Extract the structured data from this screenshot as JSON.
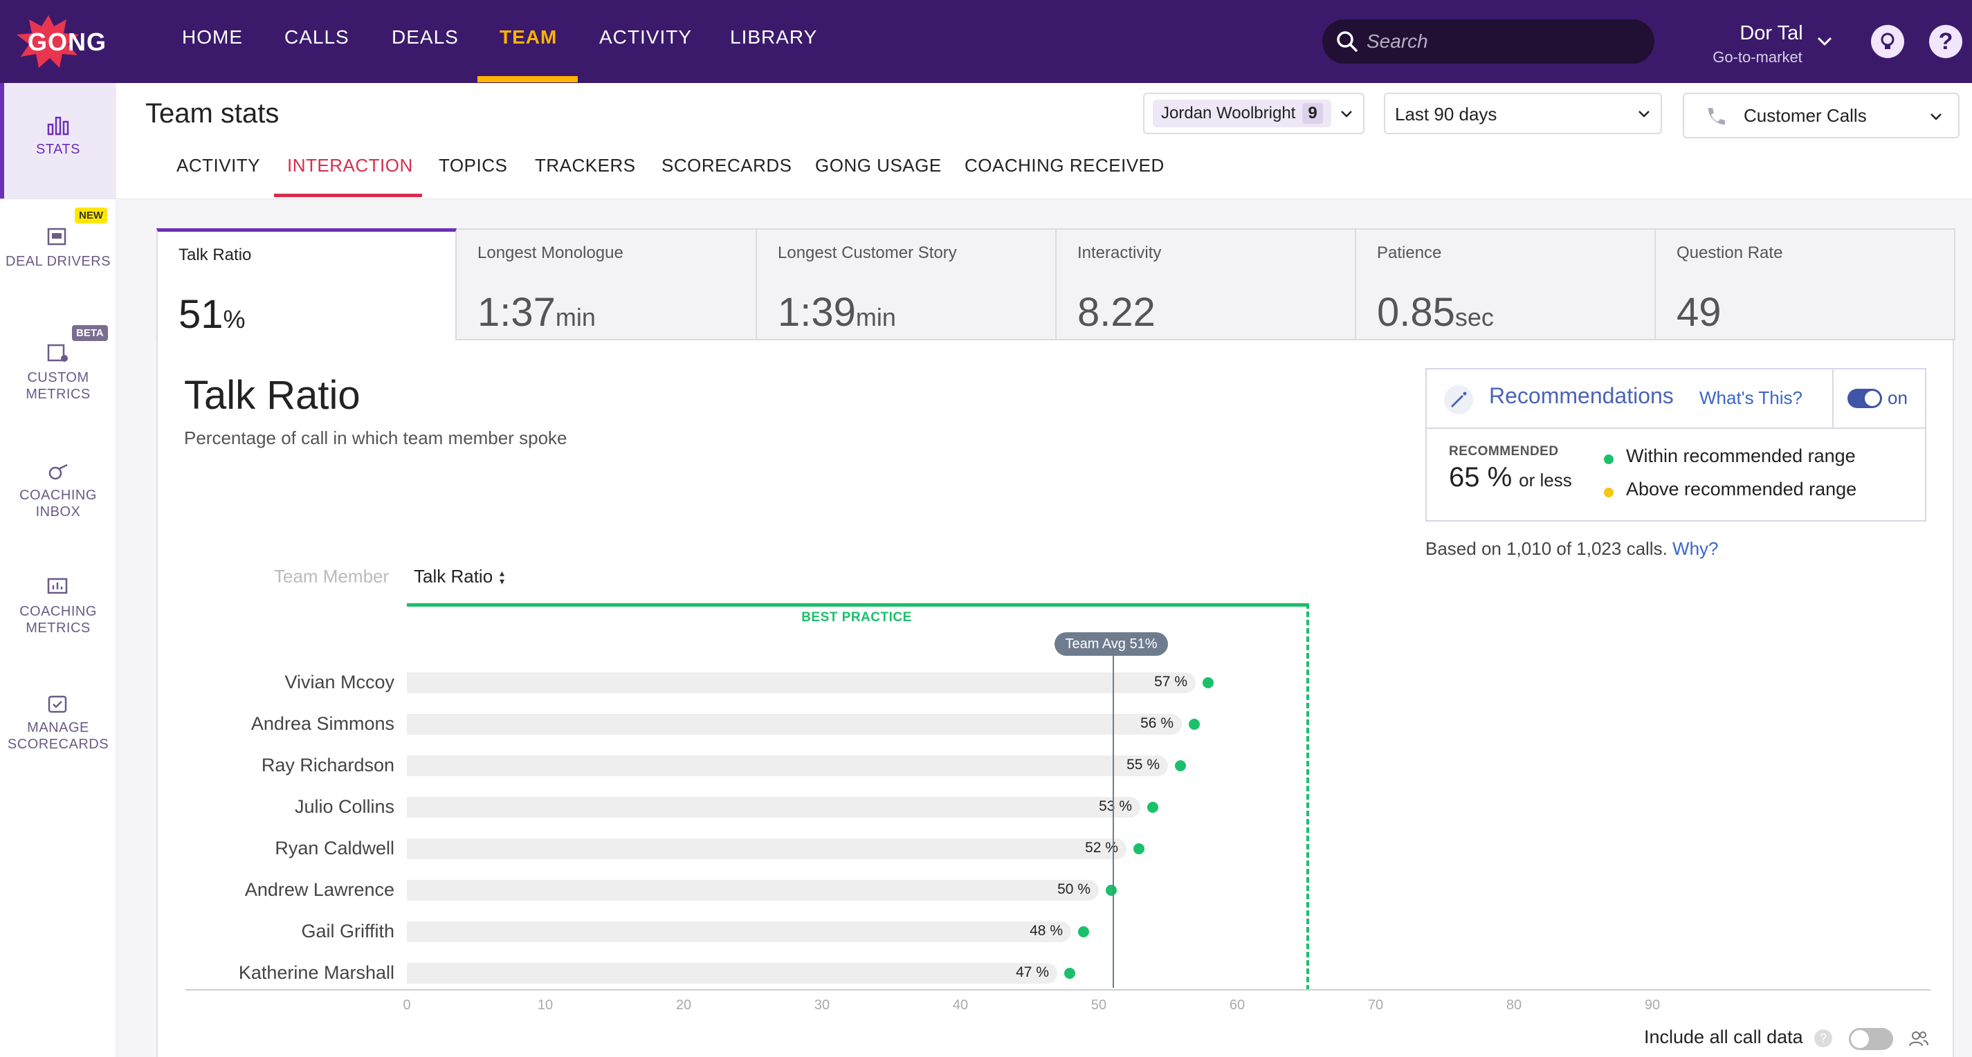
{
  "app": {
    "logo_text": "GONG",
    "brand_color": "#3b1a6c",
    "accent_color": "#ffb400"
  },
  "nav": {
    "items": [
      "HOME",
      "CALLS",
      "DEALS",
      "TEAM",
      "ACTIVITY",
      "LIBRARY"
    ],
    "active": "TEAM"
  },
  "search": {
    "placeholder": "Search"
  },
  "user": {
    "name": "Dor Tal",
    "role": "Go-to-market"
  },
  "sidebar": {
    "items": [
      {
        "label": "STATS",
        "icon": "bar-chart-icon",
        "active": true
      },
      {
        "label": "DEAL DRIVERS",
        "icon": "deal-drivers-icon",
        "badge": "NEW"
      },
      {
        "label": "CUSTOM METRICS",
        "icon": "custom-metrics-icon",
        "badge": "BETA"
      },
      {
        "label": "COACHING INBOX",
        "icon": "whistle-icon"
      },
      {
        "label": "COACHING METRICS",
        "icon": "coaching-metrics-icon"
      },
      {
        "label": "MANAGE SCORECARDS",
        "icon": "scorecard-icon"
      }
    ]
  },
  "header": {
    "title": "Team stats",
    "member_filter": {
      "name": "Jordan Woolbright",
      "count": "9"
    },
    "date_filter": "Last 90 days",
    "call_type_filter": "Customer Calls"
  },
  "subtabs": [
    "ACTIVITY",
    "INTERACTION",
    "TOPICS",
    "TRACKERS",
    "SCORECARDS",
    "GONG USAGE",
    "COACHING RECEIVED"
  ],
  "active_subtab": "INTERACTION",
  "metrics": [
    {
      "label": "Talk Ratio",
      "value": "51",
      "unit": "%",
      "active": true
    },
    {
      "label": "Longest Monologue",
      "value": "1:37",
      "unit": "min"
    },
    {
      "label": "Longest Customer Story",
      "value": "1:39",
      "unit": "min"
    },
    {
      "label": "Interactivity",
      "value": "8.22",
      "unit": ""
    },
    {
      "label": "Patience",
      "value": "0.85",
      "unit": "sec"
    },
    {
      "label": "Question Rate",
      "value": "49",
      "unit": ""
    }
  ],
  "chart": {
    "title": "Talk Ratio",
    "description": "Percentage of call in which team member spoke",
    "col_member": "Team Member",
    "col_metric": "Talk Ratio",
    "best_practice_label": "BEST PRACTICE",
    "team_avg_label": "Team Avg 51%"
  },
  "recommendations": {
    "title": "Recommendations",
    "link": "What's This?",
    "toggle": "on",
    "recommended_label": "RECOMMENDED",
    "recommended_value": "65 %",
    "recommended_suffix": "or less",
    "legend": [
      {
        "text": "Within recommended range",
        "color": "#1bc06b"
      },
      {
        "text": "Above recommended range",
        "color": "#f5c518"
      }
    ],
    "note": "Based on 1,010 of 1,023 calls.",
    "why": "Why?"
  },
  "footer": {
    "include_label": "Include all call data"
  },
  "chart_data": {
    "type": "bar",
    "orientation": "horizontal",
    "categories": [
      "Vivian Mccoy",
      "Andrea Simmons",
      "Ray Richardson",
      "Julio Collins",
      "Ryan Caldwell",
      "Andrew Lawrence",
      "Gail Griffith",
      "Katherine Marshall"
    ],
    "values": [
      57,
      56,
      55,
      53,
      52,
      50,
      48,
      47
    ],
    "value_labels": [
      "57 %",
      "56 %",
      "55 %",
      "53 %",
      "52 %",
      "50 %",
      "48 %",
      "47 %"
    ],
    "xlim": [
      0,
      100
    ],
    "ticks": [
      "0",
      "10",
      "20",
      "30",
      "40",
      "50",
      "60",
      "70",
      "80",
      "90"
    ],
    "team_avg": 51,
    "best_practice_max": 65,
    "point_color": "#1bc06b"
  }
}
